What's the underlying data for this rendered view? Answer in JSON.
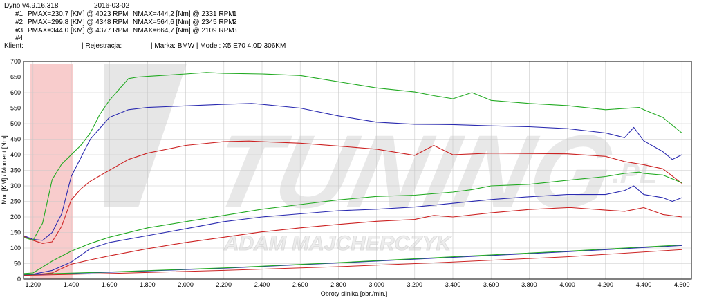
{
  "header": {
    "app": "Dyno v4.9.16.318",
    "date": "2016-03-02",
    "runs": [
      {
        "id": "#1:",
        "pmax": "PMAX=230,7 [KM] @ 4023 RPM",
        "nmax": "NMAX=444,2 [Nm] @ 2331 RPM",
        "num": "1"
      },
      {
        "id": "#2:",
        "pmax": "PMAX=299,8 [KM] @ 4348 RPM",
        "nmax": "NMAX=564,6 [Nm] @ 2345 RPM",
        "num": "2"
      },
      {
        "id": "#3:",
        "pmax": "PMAX=344,0 [KM] @ 4377 RPM",
        "nmax": "NMAX=664,7 [Nm] @ 2109 RPM",
        "num": "3"
      },
      {
        "id": "#4:",
        "pmax": "",
        "nmax": "",
        "num": ""
      }
    ],
    "client_label": "Klient:",
    "registration": "| Rejestracja:",
    "vehicle": "| Marka: BMW | Model: X5 E70 4,0D 306KM"
  },
  "watermark": {
    "brand": "TUNING",
    "suffix": ".PL",
    "name": "ADAM MAJCHERCZYK"
  },
  "colors": {
    "run1": "#cc2222",
    "run2": "#2a2ab0",
    "run3": "#22aa22",
    "grid": "#c8c8c8",
    "logo": "#e8e8e8",
    "accent": "#f4b0b0"
  },
  "chart_data": {
    "type": "line",
    "xlabel": "Obroty silnika [obr./min.]",
    "ylabel": "Moc [KM] / Moment [Nm]",
    "xlim": [
      1150,
      4650
    ],
    "ylim": [
      0,
      700
    ],
    "xticks": [
      1200,
      1400,
      1600,
      1800,
      2000,
      2200,
      2400,
      2600,
      2800,
      3000,
      3200,
      3400,
      3600,
      3800,
      4000,
      4200,
      4400,
      4600
    ],
    "xticklabels": [
      "1.200",
      "1.400",
      "1.600",
      "1.800",
      "2.000",
      "2.200",
      "2.400",
      "2.600",
      "2.800",
      "3.000",
      "3.200",
      "3.400",
      "3.600",
      "3.800",
      "4.000",
      "4.200",
      "4.400",
      "4.600"
    ],
    "yticks": [
      0,
      50,
      100,
      150,
      200,
      250,
      300,
      350,
      400,
      450,
      500,
      550,
      600,
      650,
      700
    ],
    "grid": true,
    "series": [
      {
        "name": "",
        "kind": "torque",
        "run": 1,
        "x": [
          1150,
          1200,
          1250,
          1300,
          1350,
          1400,
          1450,
          1500,
          1600,
          1700,
          1800,
          2000,
          2200,
          2331,
          2400,
          2600,
          2800,
          3000,
          3200,
          3300,
          3400,
          3600,
          3800,
          4000,
          4200,
          4300,
          4400,
          4500,
          4600
        ],
        "y": [
          138,
          125,
          115,
          120,
          170,
          255,
          290,
          315,
          350,
          385,
          405,
          430,
          442,
          444,
          442,
          437,
          428,
          418,
          398,
          430,
          400,
          405,
          404,
          403,
          395,
          378,
          368,
          355,
          308
        ]
      },
      {
        "name": "",
        "kind": "power",
        "run": 1,
        "x": [
          1150,
          1200,
          1300,
          1400,
          1500,
          1600,
          1800,
          2000,
          2200,
          2400,
          2600,
          2800,
          3000,
          3200,
          3300,
          3400,
          3600,
          3800,
          4000,
          4023,
          4200,
          4300,
          4400,
          4500,
          4600
        ],
        "y": [
          12,
          14,
          20,
          48,
          62,
          75,
          98,
          118,
          135,
          152,
          165,
          176,
          186,
          192,
          205,
          200,
          213,
          224,
          230,
          230,
          222,
          218,
          230,
          208,
          200
        ]
      },
      {
        "name": "",
        "kind": "torque",
        "run": 2,
        "x": [
          1150,
          1200,
          1250,
          1300,
          1350,
          1400,
          1500,
          1600,
          1700,
          1800,
          2000,
          2200,
          2345,
          2400,
          2600,
          2800,
          3000,
          3200,
          3400,
          3600,
          3800,
          4000,
          4200,
          4300,
          4348,
          4400,
          4500,
          4550,
          4600
        ],
        "y": [
          140,
          128,
          125,
          150,
          210,
          330,
          450,
          520,
          545,
          552,
          557,
          562,
          565,
          562,
          550,
          525,
          505,
          498,
          497,
          493,
          490,
          484,
          470,
          455,
          488,
          445,
          410,
          385,
          400
        ]
      },
      {
        "name": "",
        "kind": "power",
        "run": 2,
        "x": [
          1150,
          1200,
          1300,
          1400,
          1500,
          1600,
          1800,
          2000,
          2200,
          2400,
          2600,
          2800,
          3000,
          3200,
          3400,
          3600,
          3800,
          4000,
          4200,
          4300,
          4348,
          4400,
          4500,
          4550,
          4600
        ],
        "y": [
          14,
          16,
          28,
          55,
          98,
          118,
          140,
          162,
          185,
          200,
          210,
          220,
          225,
          232,
          244,
          256,
          265,
          272,
          272,
          285,
          300,
          272,
          262,
          250,
          262
        ]
      },
      {
        "name": "",
        "kind": "torque",
        "run": 3,
        "x": [
          1150,
          1200,
          1250,
          1300,
          1350,
          1400,
          1450,
          1500,
          1550,
          1600,
          1700,
          1750,
          1800,
          2000,
          2109,
          2200,
          2400,
          2600,
          2800,
          3000,
          3200,
          3300,
          3400,
          3500,
          3600,
          3800,
          4000,
          4200,
          4377,
          4400,
          4500,
          4600
        ],
        "y": [
          135,
          125,
          180,
          320,
          370,
          400,
          430,
          470,
          530,
          575,
          645,
          650,
          652,
          660,
          665,
          662,
          660,
          655,
          635,
          615,
          602,
          590,
          580,
          600,
          575,
          565,
          558,
          545,
          552,
          545,
          520,
          470
        ]
      },
      {
        "name": "",
        "kind": "power",
        "run": 3,
        "x": [
          1150,
          1200,
          1300,
          1400,
          1500,
          1600,
          1800,
          2000,
          2200,
          2400,
          2600,
          2800,
          3000,
          3200,
          3400,
          3500,
          3600,
          3800,
          4000,
          4200,
          4300,
          4377,
          4400,
          4500,
          4600
        ],
        "y": [
          18,
          20,
          58,
          90,
          115,
          135,
          165,
          185,
          205,
          225,
          240,
          255,
          266,
          270,
          280,
          288,
          300,
          305,
          318,
          330,
          340,
          344,
          340,
          335,
          310
        ]
      },
      {
        "name": "",
        "kind": "losses",
        "run": 1,
        "x": [
          1150,
          1600,
          2200,
          2800,
          3400,
          4000,
          4600
        ],
        "y": [
          12,
          18,
          28,
          40,
          55,
          72,
          95
        ]
      },
      {
        "name": "",
        "kind": "losses",
        "run": 2,
        "x": [
          1150,
          1600,
          2200,
          2800,
          3400,
          4000,
          4600
        ],
        "y": [
          14,
          22,
          35,
          52,
          70,
          88,
          108
        ]
      },
      {
        "name": "",
        "kind": "losses",
        "run": 3,
        "x": [
          1150,
          1600,
          2200,
          2800,
          3400,
          4000,
          4600
        ],
        "y": [
          15,
          23,
          36,
          53,
          72,
          90,
          110
        ]
      }
    ]
  }
}
